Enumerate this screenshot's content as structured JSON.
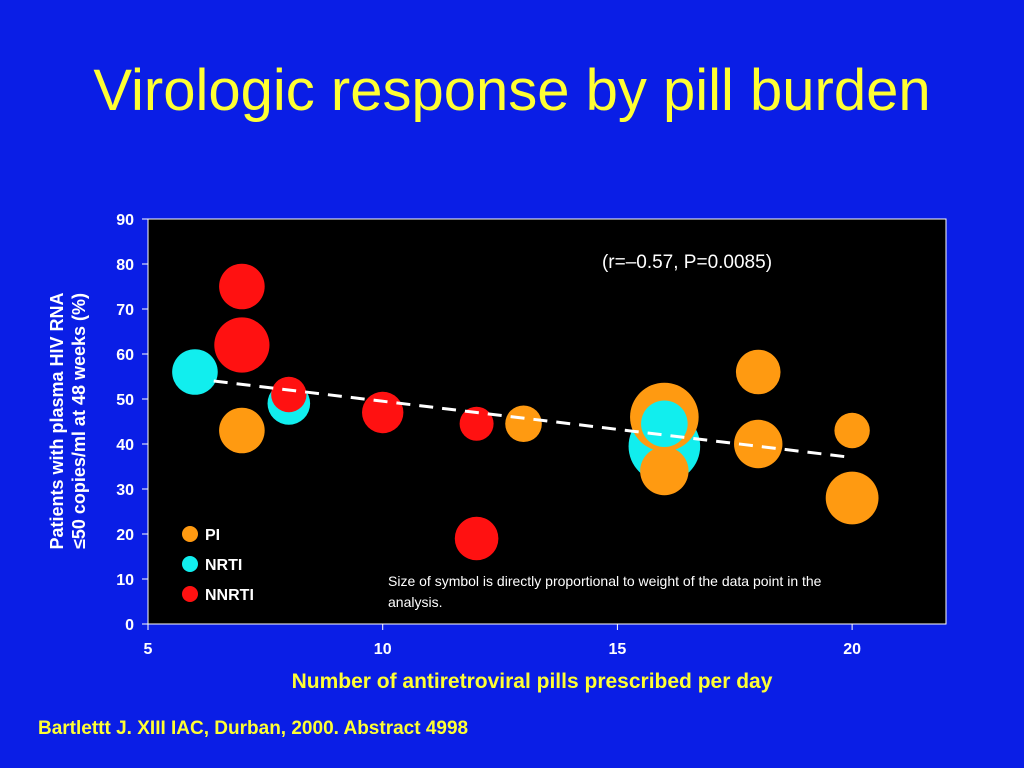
{
  "slide": {
    "title": "Virologic response by pill burden",
    "citation": "Bartlettt J. XIII IAC, Durban, 2000. Abstract 4998"
  },
  "chart_data": {
    "type": "scatter",
    "xlabel": "Number of antiretroviral pills prescribed per day",
    "ylabel_line1": "Patients with plasma HIV RNA",
    "ylabel_line2": "≤50 copies/ml at 48 weeks (%)",
    "xlim": [
      5,
      22
    ],
    "ylim": [
      0,
      90
    ],
    "xticks": [
      5,
      10,
      15,
      20
    ],
    "yticks": [
      0,
      10,
      20,
      30,
      40,
      50,
      60,
      70,
      80,
      90
    ],
    "annotation_stat": "(r=–0.57, P=0.0085)",
    "annotation_note": [
      "Size of symbol is directly proportional to weight of the data point in the",
      "analysis."
    ],
    "legend_position": "bottom-left",
    "grid": false,
    "plot_background": "#000000",
    "series": [
      {
        "name": "PI",
        "color": "#ff9a11",
        "points": [
          {
            "x": 7,
            "y": 43,
            "weight": 2
          },
          {
            "x": 13,
            "y": 44.5,
            "weight": 1.2
          },
          {
            "x": 16,
            "y": 46,
            "weight": 5
          },
          {
            "x": 16,
            "y": 34,
            "weight": 2.3
          },
          {
            "x": 18,
            "y": 56,
            "weight": 1.9
          },
          {
            "x": 18,
            "y": 40,
            "weight": 2.3
          },
          {
            "x": 20,
            "y": 43,
            "weight": 1.1
          },
          {
            "x": 20,
            "y": 28,
            "weight": 2.8
          }
        ]
      },
      {
        "name": "NRTI",
        "color": "#11eeee",
        "points": [
          {
            "x": 6,
            "y": 56,
            "weight": 2
          },
          {
            "x": 8,
            "y": 49,
            "weight": 1.7
          },
          {
            "x": 16,
            "y": 39.5,
            "weight": 5.5
          },
          {
            "x": 16,
            "y": 44.5,
            "weight": 2.1
          }
        ]
      },
      {
        "name": "NNRTI",
        "color": "#ff1111",
        "points": [
          {
            "x": 7,
            "y": 75,
            "weight": 2
          },
          {
            "x": 7,
            "y": 62,
            "weight": 3.1
          },
          {
            "x": 8,
            "y": 51,
            "weight": 1.1
          },
          {
            "x": 10,
            "y": 47,
            "weight": 1.6
          },
          {
            "x": 12,
            "y": 44.5,
            "weight": 1
          },
          {
            "x": 12,
            "y": 19,
            "weight": 1.8
          }
        ]
      }
    ],
    "regression_line": {
      "x": [
        6.4,
        20
      ],
      "y": [
        54,
        37
      ],
      "style": "dashed",
      "color": "#ffffff"
    }
  }
}
